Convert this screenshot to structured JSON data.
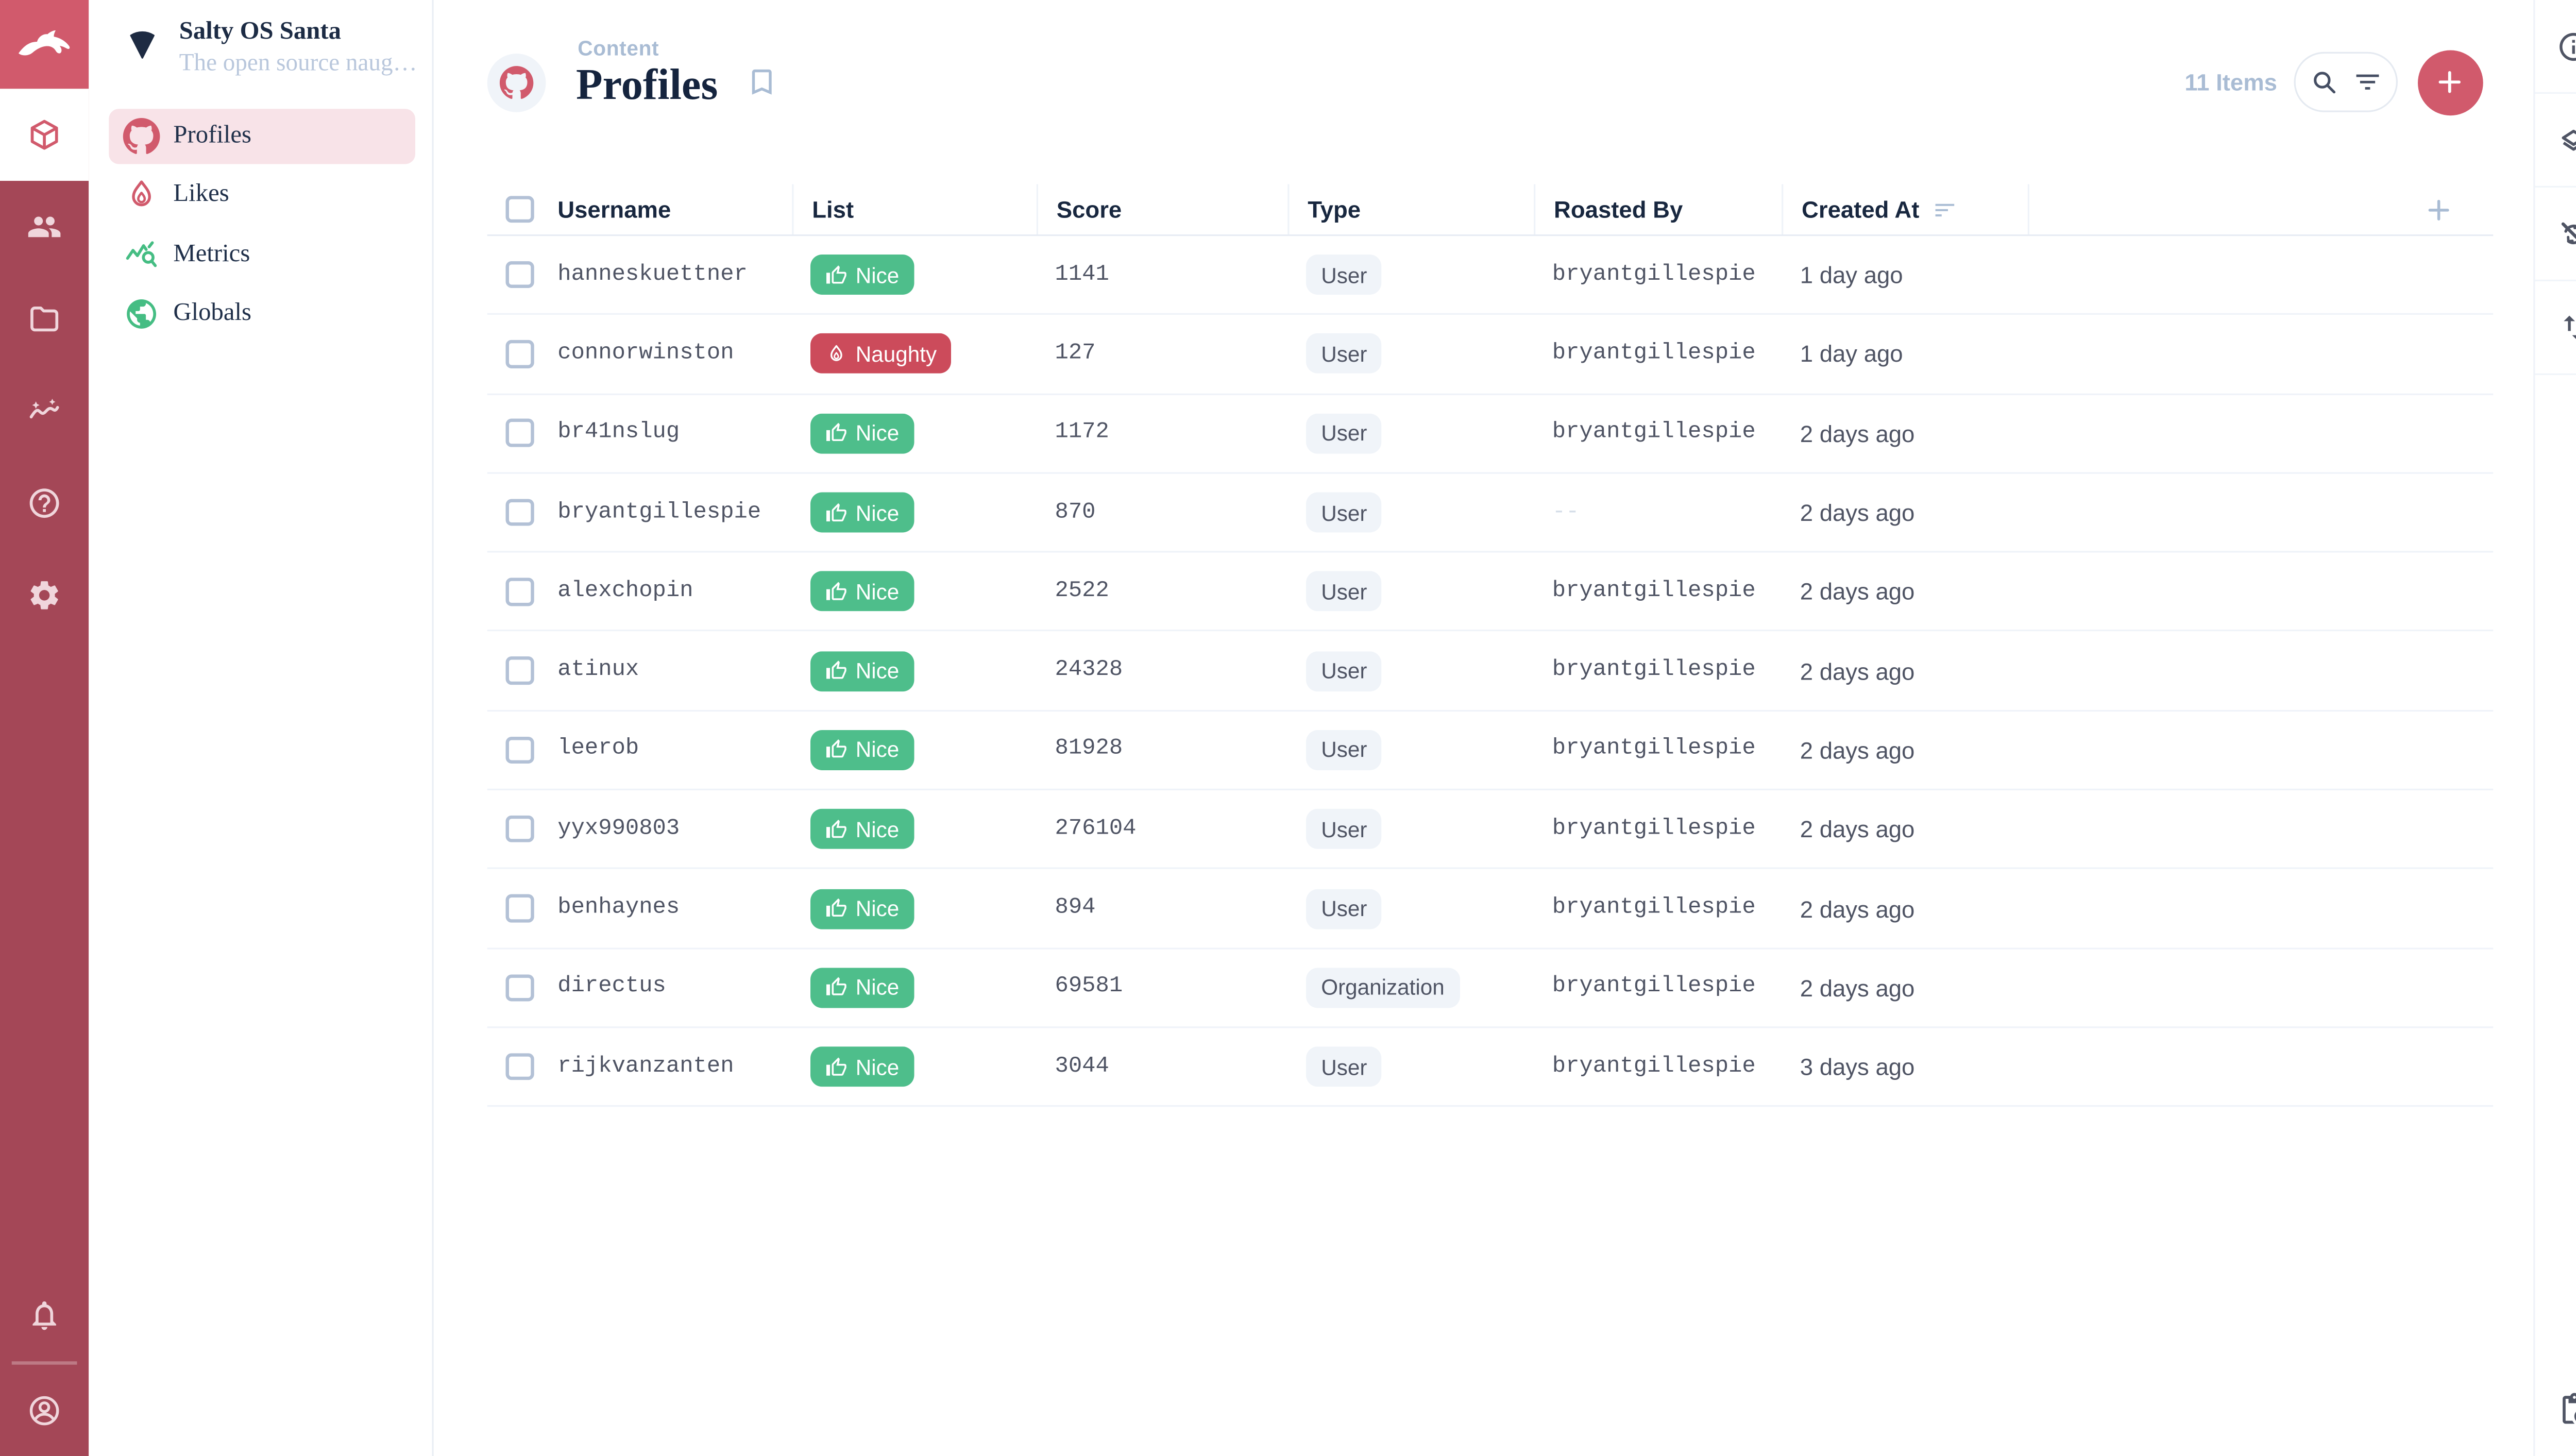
{
  "colors": {
    "accent": "#D15A6C",
    "module_bar_bg": "#A44757",
    "logo_bg": "#D15A6C",
    "nice_badge": "#4EBE8B",
    "naughty_badge": "#CC4B5B",
    "title_navy": "#15243E",
    "text_slate": "#4F5464",
    "subdued_blue": "#A9BCD4",
    "active_nav_pink": "#F8E3E8",
    "green_icons": "#45BD83"
  },
  "module_bar": {
    "logo_icon": "rabbit-logo-icon",
    "modules": [
      {
        "name": "content",
        "icon": "cube-icon",
        "active": true
      },
      {
        "name": "users",
        "icon": "users-icon",
        "active": false
      },
      {
        "name": "files",
        "icon": "folder-icon",
        "active": false
      },
      {
        "name": "insights",
        "icon": "insights-icon",
        "active": false
      },
      {
        "name": "docs",
        "icon": "help-icon",
        "active": false
      },
      {
        "name": "settings",
        "icon": "settings-icon",
        "active": false
      }
    ],
    "bottom": [
      {
        "name": "notifications",
        "icon": "bell-icon"
      },
      {
        "name": "account",
        "icon": "account-circle-icon"
      }
    ]
  },
  "sidebar": {
    "project_name": "Salty OS Santa",
    "project_descriptor": "The open source naug…",
    "project_icon": "fan-icon",
    "items": [
      {
        "label": "Profiles",
        "icon": "github-icon",
        "active": true
      },
      {
        "label": "Likes",
        "icon": "flame-icon",
        "active": false
      },
      {
        "label": "Metrics",
        "icon": "query-stats-icon",
        "active": false
      },
      {
        "label": "Globals",
        "icon": "globe-icon",
        "active": false
      }
    ]
  },
  "header": {
    "breadcrumb": "Content",
    "title": "Profiles",
    "title_icon": "github-icon",
    "bookmark_icon": "bookmark-icon",
    "items_count": "11 Items",
    "tools": [
      "search-icon",
      "filter-icon"
    ],
    "add_button_icon": "plus-icon"
  },
  "table": {
    "columns": [
      "Username",
      "List",
      "Score",
      "Type",
      "Roasted By",
      "Created At"
    ],
    "sorted_column": "Created At",
    "add_column_icon": "plus-icon",
    "rows": [
      {
        "username": "hanneskuettner",
        "list": "Nice",
        "score": "1141",
        "type": "User",
        "roasted_by": "bryantgillespie",
        "created_at": "1 day ago"
      },
      {
        "username": "connorwinston",
        "list": "Naughty",
        "score": "127",
        "type": "User",
        "roasted_by": "bryantgillespie",
        "created_at": "1 day ago"
      },
      {
        "username": "br41nslug",
        "list": "Nice",
        "score": "1172",
        "type": "User",
        "roasted_by": "bryantgillespie",
        "created_at": "2 days ago"
      },
      {
        "username": "bryantgillespie",
        "list": "Nice",
        "score": "870",
        "type": "User",
        "roasted_by": "--",
        "created_at": "2 days ago"
      },
      {
        "username": "alexchopin",
        "list": "Nice",
        "score": "2522",
        "type": "User",
        "roasted_by": "bryantgillespie",
        "created_at": "2 days ago"
      },
      {
        "username": "atinux",
        "list": "Nice",
        "score": "24328",
        "type": "User",
        "roasted_by": "bryantgillespie",
        "created_at": "2 days ago"
      },
      {
        "username": "leerob",
        "list": "Nice",
        "score": "81928",
        "type": "User",
        "roasted_by": "bryantgillespie",
        "created_at": "2 days ago"
      },
      {
        "username": "yyx990803",
        "list": "Nice",
        "score": "276104",
        "type": "User",
        "roasted_by": "bryantgillespie",
        "created_at": "2 days ago"
      },
      {
        "username": "benhaynes",
        "list": "Nice",
        "score": "894",
        "type": "User",
        "roasted_by": "bryantgillespie",
        "created_at": "2 days ago"
      },
      {
        "username": "directus",
        "list": "Nice",
        "score": "69581",
        "type": "Organization",
        "roasted_by": "bryantgillespie",
        "created_at": "2 days ago"
      },
      {
        "username": "rijkvanzanten",
        "list": "Nice",
        "score": "3044",
        "type": "User",
        "roasted_by": "bryantgillespie",
        "created_at": "3 days ago"
      }
    ]
  },
  "right_sidebar": {
    "icons": [
      {
        "name": "info",
        "icon": "info-icon"
      },
      {
        "name": "layers",
        "icon": "layers-icon"
      },
      {
        "name": "sync-disabled",
        "icon": "sync-disabled-icon"
      },
      {
        "name": "import-export",
        "icon": "import-export-icon"
      }
    ],
    "bottom_icon": {
      "name": "pending-actions",
      "icon": "pending-actions-icon"
    }
  }
}
